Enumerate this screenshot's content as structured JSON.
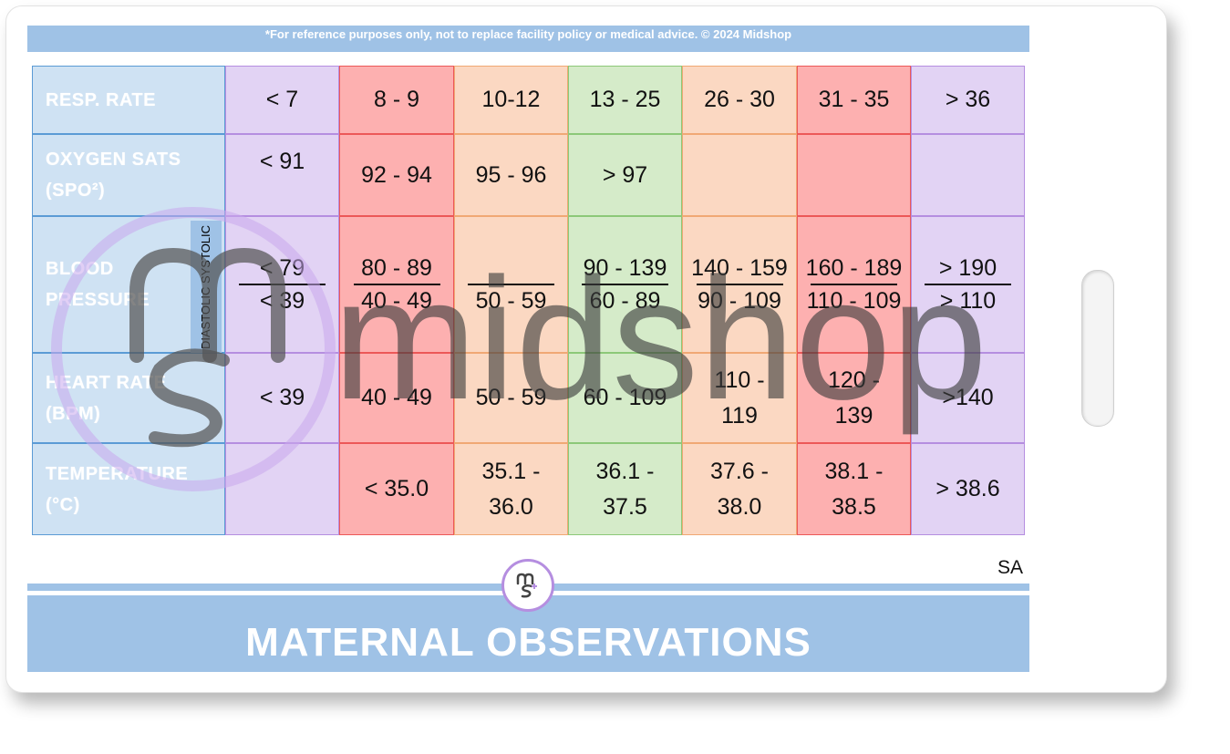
{
  "disclaimer": "*For reference purposes only, not to replace facility policy or medical advice. © 2024 Midshop",
  "rows": {
    "resp": {
      "label_line1": "RESP. RATE",
      "cells": [
        "< 7",
        "8 - 9",
        "10-12",
        "13 - 25",
        "26 - 30",
        "31 - 35",
        "> 36"
      ]
    },
    "oxygen": {
      "label_line1": "OXYGEN SATS",
      "label_line2": "(SPO²)",
      "cells": [
        "< 91",
        "92 - 94",
        "95 - 96",
        "> 97",
        "",
        "",
        ""
      ]
    },
    "bp": {
      "label_line1": "BLOOD",
      "label_line2": "PRESSURE",
      "axis_label": "DIASTOLIC SYSTOLIC",
      "systolic": [
        "< 79",
        "80 - 89",
        "",
        "90 - 139",
        "140 - 159",
        "160 - 189",
        "> 190"
      ],
      "diastolic": [
        "< 39",
        "40 - 49",
        "50 - 59",
        "60 - 89",
        "90 - 109",
        "110 - 109",
        "> 110"
      ]
    },
    "hr": {
      "label_line1": "HEART RATE",
      "label_line2": "(BPM)",
      "cells": [
        "< 39",
        "40 - 49",
        "50 - 59",
        "60 - 109",
        "110 -\n119",
        "120 -\n139",
        ">140"
      ],
      "cells_split": [
        [
          "< 39"
        ],
        [
          "40 - 49"
        ],
        [
          "50 - 59"
        ],
        [
          "60 - 109"
        ],
        [
          "110 -",
          "119"
        ],
        [
          "120 -",
          "139"
        ],
        [
          ">140"
        ]
      ]
    },
    "temp": {
      "label_line1": "TEMPERATURE",
      "label_line2": "(°C)",
      "cells_split": [
        [
          ""
        ],
        [
          "< 35.0"
        ],
        [
          "35.1 -",
          "36.0"
        ],
        [
          "36.1 -",
          "37.5"
        ],
        [
          "37.6 -",
          "38.0"
        ],
        [
          "38.1 -",
          "38.5"
        ],
        [
          "> 38.6"
        ]
      ]
    }
  },
  "column_colors": [
    "purple",
    "red",
    "orange",
    "green",
    "orange",
    "red",
    "purple"
  ],
  "colors": {
    "purple": "#e2d3f4",
    "red": "#fdb0b0",
    "orange": "#fbd8c2",
    "green": "#d5ebc9",
    "header_blue": "#cfe2f3",
    "bar_blue": "#9fc2e6"
  },
  "watermark_text": "midshop",
  "region_code": "SA",
  "footer_title": "MATERNAL OBSERVATIONS",
  "icons": [
    "midshop-logo-icon",
    "lanyard-slot-icon"
  ]
}
